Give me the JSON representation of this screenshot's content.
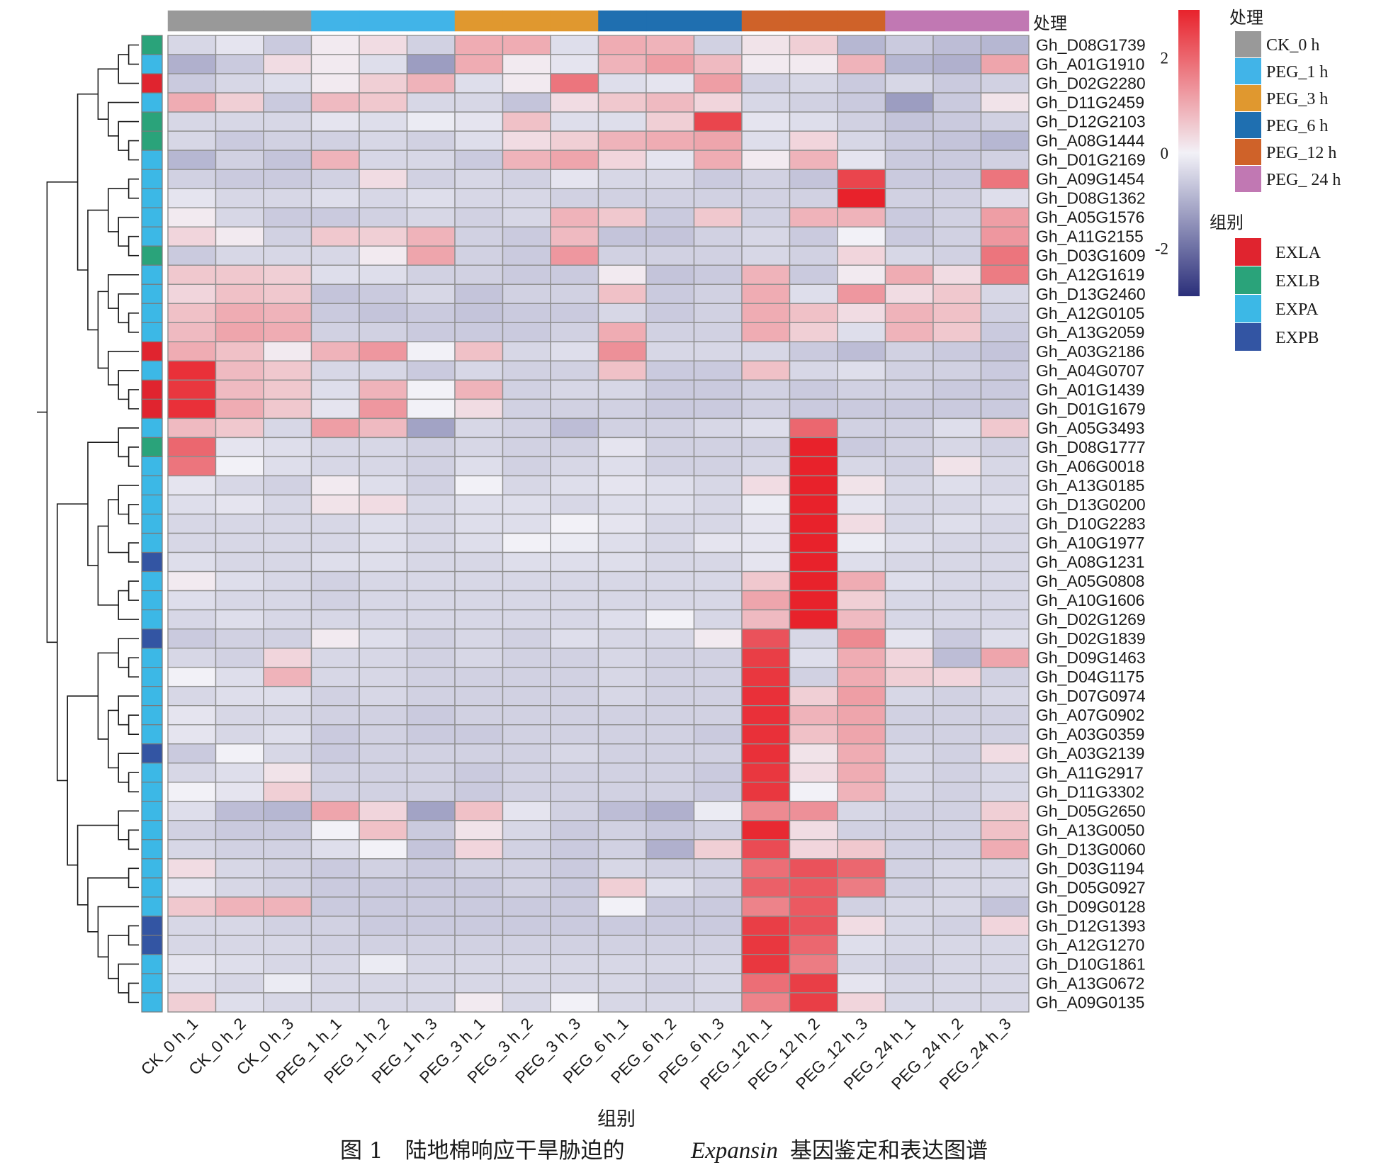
{
  "chart_data": {
    "type": "heatmap",
    "columns": [
      "CK_0 h_1",
      "CK_0 h_2",
      "CK_0 h_3",
      "PEG_1 h_1",
      "PEG_1 h_2",
      "PEG_1 h_3",
      "PEG_3 h_1",
      "PEG_3 h_2",
      "PEG_3 h_3",
      "PEG_6 h_1",
      "PEG_6 h_2",
      "PEG_6 h_3",
      "PEG_12 h_1",
      "PEG_12 h_2",
      "PEG_12 h_3",
      "PEG_24 h_1",
      "PEG_24 h_2",
      "PEG_24 h_3"
    ],
    "column_groups": [
      "CK_0 h",
      "CK_0 h",
      "CK_0 h",
      "PEG_1 h",
      "PEG_1 h",
      "PEG_1 h",
      "PEG_3 h",
      "PEG_3 h",
      "PEG_3 h",
      "PEG_6 h",
      "PEG_6 h",
      "PEG_6 h",
      "PEG_12 h",
      "PEG_12 h",
      "PEG_12 h",
      "PEG_24 h",
      "PEG_24 h",
      "PEG_24 h"
    ],
    "rows": [
      "Gh_D08G1739",
      "Gh_A01G1910",
      "Gh_D02G2280",
      "Gh_D11G2459",
      "Gh_D12G2103",
      "Gh_A08G1444",
      "Gh_D01G2169",
      "Gh_A09G1454",
      "Gh_D08G1362",
      "Gh_A05G1576",
      "Gh_A11G2155",
      "Gh_D03G1609",
      "Gh_A12G1619",
      "Gh_D13G2460",
      "Gh_A12G0105",
      "Gh_A13G2059",
      "Gh_A03G2186",
      "Gh_A04G0707",
      "Gh_A01G1439",
      "Gh_D01G1679",
      "Gh_A05G3493",
      "Gh_D08G1777",
      "Gh_A06G0018",
      "Gh_A13G0185",
      "Gh_D13G0200",
      "Gh_D10G2283",
      "Gh_A10G1977",
      "Gh_A08G1231",
      "Gh_A05G0808",
      "Gh_A10G1606",
      "Gh_D02G1269",
      "Gh_D02G1839",
      "Gh_D09G1463",
      "Gh_D04G1175",
      "Gh_D07G0974",
      "Gh_A07G0902",
      "Gh_A03G0359",
      "Gh_A03G2139",
      "Gh_A11G2917",
      "Gh_D11G3302",
      "Gh_D05G2650",
      "Gh_A13G0050",
      "Gh_D13G0060",
      "Gh_D03G1194",
      "Gh_D05G0927",
      "Gh_D09G0128",
      "Gh_D12G1393",
      "Gh_A12G1270",
      "Gh_D10G1861",
      "Gh_A13G0672",
      "Gh_A09G0135"
    ],
    "row_groups": [
      "EXLB",
      "EXPA",
      "EXLA",
      "EXPA",
      "EXLB",
      "EXLB",
      "EXPA",
      "EXPA",
      "EXPA",
      "EXPA",
      "EXPA",
      "EXLB",
      "EXPA",
      "EXPA",
      "EXPA",
      "EXPA",
      "EXLA",
      "EXPA",
      "EXLA",
      "EXLA",
      "EXPA",
      "EXLB",
      "EXPA",
      "EXPA",
      "EXPA",
      "EXPA",
      "EXPA",
      "EXPB",
      "EXPA",
      "EXPA",
      "EXPA",
      "EXPB",
      "EXPA",
      "EXPA",
      "EXPA",
      "EXPA",
      "EXPA",
      "EXPB",
      "EXPA",
      "EXPA",
      "EXPA",
      "EXPA",
      "EXPA",
      "EXPA",
      "EXPA",
      "EXPA",
      "EXPB",
      "EXPB",
      "EXPA",
      "EXPA",
      "EXPA"
    ],
    "values": [
      [
        -0.4,
        -0.2,
        -0.6,
        0.1,
        0.3,
        -0.5,
        1.0,
        1.0,
        -0.3,
        1.0,
        0.9,
        -0.5,
        0.2,
        0.5,
        -0.9,
        -0.6,
        -0.8,
        -0.9
      ],
      [
        -1.0,
        -0.6,
        0.3,
        0.1,
        -0.3,
        -1.3,
        1.0,
        0.1,
        -0.2,
        0.9,
        1.2,
        0.8,
        0.1,
        0.1,
        0.9,
        -0.9,
        -1.0,
        1.1
      ],
      [
        -0.6,
        -0.4,
        -0.3,
        0.1,
        0.5,
        0.9,
        -0.3,
        0.1,
        1.8,
        -0.3,
        -0.2,
        1.2,
        -0.5,
        -0.4,
        -0.6,
        -0.4,
        -0.6,
        -0.5
      ],
      [
        1.0,
        0.5,
        -0.6,
        0.8,
        0.6,
        -0.4,
        -0.4,
        -0.7,
        0.3,
        0.6,
        0.8,
        0.4,
        -0.4,
        -0.5,
        -0.6,
        -1.3,
        -0.6,
        0.2
      ],
      [
        -0.4,
        -0.4,
        -0.4,
        -0.2,
        -0.3,
        -0.1,
        -0.2,
        0.7,
        -0.3,
        -0.3,
        0.5,
        2.5,
        -0.2,
        -0.3,
        -0.5,
        -0.7,
        -0.6,
        -0.5
      ],
      [
        -0.4,
        -0.6,
        -0.5,
        -0.5,
        -0.4,
        -0.5,
        -0.3,
        0.3,
        0.5,
        0.9,
        1.0,
        1.1,
        -0.3,
        0.4,
        -0.4,
        -0.6,
        -0.7,
        -0.9
      ],
      [
        -0.9,
        -0.5,
        -0.7,
        0.9,
        -0.4,
        -0.4,
        -0.6,
        0.9,
        1.1,
        0.4,
        -0.2,
        1.0,
        0.1,
        0.9,
        -0.2,
        -0.6,
        -0.6,
        -0.5
      ],
      [
        -0.5,
        -0.6,
        -0.6,
        -0.5,
        0.3,
        -0.5,
        -0.4,
        -0.5,
        -0.2,
        -0.4,
        -0.4,
        -0.6,
        -0.5,
        -0.7,
        2.5,
        -0.6,
        -0.6,
        1.8
      ],
      [
        -0.2,
        -0.4,
        -0.4,
        -0.3,
        -0.4,
        -0.3,
        -0.4,
        -0.4,
        -0.5,
        -0.5,
        -0.5,
        -0.5,
        -0.5,
        -0.5,
        3.0,
        -0.5,
        -0.5,
        -0.3
      ],
      [
        0.1,
        -0.4,
        -0.6,
        -0.6,
        -0.5,
        -0.4,
        -0.5,
        -0.4,
        0.9,
        0.6,
        -0.6,
        0.6,
        -0.5,
        0.9,
        0.9,
        -0.6,
        -0.5,
        1.2
      ],
      [
        0.4,
        0.1,
        -0.5,
        0.6,
        0.5,
        0.9,
        -0.5,
        -0.6,
        0.8,
        -0.7,
        -0.7,
        -0.5,
        -0.4,
        -0.6,
        0.0,
        -0.6,
        -0.5,
        1.3
      ],
      [
        -0.6,
        -0.4,
        -0.4,
        -0.4,
        0.1,
        1.1,
        -0.5,
        -0.6,
        1.3,
        -0.5,
        -0.5,
        -0.5,
        -0.4,
        -0.5,
        0.4,
        -0.4,
        -0.5,
        1.8
      ],
      [
        0.6,
        0.6,
        0.5,
        -0.3,
        -0.3,
        -0.5,
        -0.5,
        -0.6,
        -0.6,
        0.1,
        -0.7,
        -0.6,
        0.9,
        -0.6,
        0.1,
        1.0,
        0.3,
        1.7
      ],
      [
        0.4,
        0.7,
        0.6,
        -0.7,
        -0.6,
        -0.4,
        -0.7,
        -0.5,
        -0.5,
        0.7,
        -0.6,
        -0.5,
        1.0,
        -0.3,
        1.3,
        0.3,
        0.6,
        -0.4
      ],
      [
        0.7,
        1.0,
        0.9,
        -0.6,
        -0.7,
        -0.6,
        -0.7,
        -0.6,
        -0.6,
        -0.4,
        -0.6,
        -0.5,
        1.0,
        0.7,
        0.3,
        0.9,
        0.7,
        -0.5
      ],
      [
        0.8,
        1.1,
        1.0,
        -0.5,
        -0.5,
        -0.6,
        -0.6,
        -0.6,
        -0.5,
        1.0,
        -0.5,
        -0.5,
        1.0,
        0.5,
        -0.3,
        0.9,
        0.6,
        -0.6
      ],
      [
        1.0,
        0.7,
        0.1,
        0.9,
        1.3,
        0.0,
        0.7,
        -0.4,
        -0.3,
        1.4,
        -0.4,
        -0.4,
        -0.4,
        -0.6,
        -0.8,
        -0.5,
        -0.6,
        -0.7
      ],
      [
        2.8,
        0.8,
        0.6,
        -0.4,
        -0.4,
        -0.6,
        -0.4,
        -0.5,
        -0.5,
        0.7,
        -0.6,
        -0.6,
        0.7,
        -0.4,
        -0.3,
        -0.5,
        -0.5,
        -0.6
      ],
      [
        2.7,
        0.8,
        0.6,
        -0.3,
        0.9,
        0.0,
        0.9,
        -0.5,
        -0.4,
        -0.4,
        -0.6,
        -0.6,
        -0.5,
        -0.6,
        -0.5,
        -0.5,
        -0.6,
        -0.6
      ],
      [
        2.8,
        1.0,
        0.6,
        -0.2,
        1.3,
        0.0,
        0.3,
        -0.5,
        -0.5,
        -0.5,
        -0.6,
        -0.6,
        -0.5,
        -0.6,
        -0.6,
        -0.6,
        -0.6,
        -0.6
      ],
      [
        0.8,
        0.6,
        -0.4,
        1.2,
        0.8,
        -1.2,
        -0.4,
        -0.5,
        -0.8,
        -0.5,
        -0.5,
        -0.4,
        -0.3,
        2.0,
        -0.5,
        -0.5,
        -0.3,
        0.6
      ],
      [
        2.0,
        -0.2,
        -0.3,
        -0.4,
        -0.4,
        -0.5,
        -0.4,
        -0.5,
        -0.5,
        -0.2,
        -0.5,
        -0.5,
        -0.5,
        3.0,
        -0.6,
        -0.5,
        -0.4,
        -0.5
      ],
      [
        1.8,
        0.0,
        -0.3,
        -0.4,
        -0.4,
        -0.5,
        -0.3,
        -0.5,
        -0.4,
        -0.3,
        -0.5,
        -0.5,
        -0.4,
        3.0,
        -0.4,
        -0.5,
        0.2,
        -0.4
      ],
      [
        -0.2,
        -0.4,
        -0.5,
        0.1,
        -0.3,
        -0.5,
        0.0,
        -0.4,
        -0.3,
        -0.2,
        -0.3,
        -0.4,
        0.3,
        3.0,
        0.2,
        -0.4,
        -0.3,
        -0.4
      ],
      [
        -0.3,
        -0.2,
        -0.4,
        0.2,
        0.3,
        -0.4,
        -0.3,
        -0.3,
        -0.4,
        -0.3,
        -0.3,
        -0.4,
        -0.1,
        3.0,
        -0.2,
        -0.4,
        -0.4,
        -0.3
      ],
      [
        -0.4,
        -0.4,
        -0.4,
        -0.4,
        -0.3,
        -0.4,
        -0.3,
        -0.3,
        0.0,
        -0.2,
        -0.4,
        -0.4,
        -0.2,
        3.0,
        0.3,
        -0.4,
        -0.3,
        -0.4
      ],
      [
        -0.4,
        -0.4,
        -0.4,
        -0.4,
        -0.3,
        -0.4,
        -0.3,
        0.0,
        -0.1,
        -0.3,
        -0.4,
        -0.2,
        -0.2,
        3.0,
        -0.1,
        -0.3,
        -0.4,
        -0.4
      ],
      [
        -0.3,
        -0.4,
        -0.4,
        -0.3,
        -0.3,
        -0.4,
        -0.4,
        -0.3,
        -0.3,
        -0.3,
        -0.4,
        -0.4,
        -0.2,
        3.0,
        -0.3,
        -0.4,
        -0.4,
        -0.4
      ],
      [
        0.1,
        -0.3,
        -0.4,
        -0.5,
        -0.4,
        -0.4,
        -0.4,
        -0.4,
        -0.4,
        -0.4,
        -0.4,
        -0.4,
        0.6,
        3.0,
        1.0,
        -0.3,
        -0.4,
        -0.4
      ],
      [
        -0.3,
        -0.4,
        -0.4,
        -0.5,
        -0.4,
        -0.4,
        -0.4,
        -0.4,
        -0.4,
        -0.4,
        -0.4,
        -0.4,
        1.1,
        3.0,
        0.5,
        -0.4,
        -0.4,
        -0.4
      ],
      [
        -0.4,
        -0.3,
        -0.4,
        -0.4,
        -0.4,
        -0.4,
        -0.4,
        -0.4,
        -0.4,
        -0.3,
        0.0,
        -0.4,
        0.8,
        3.0,
        0.8,
        -0.4,
        -0.4,
        -0.4
      ],
      [
        -0.6,
        -0.5,
        -0.5,
        0.1,
        -0.3,
        -0.5,
        -0.4,
        -0.5,
        -0.3,
        -0.4,
        -0.4,
        0.1,
        2.3,
        -0.4,
        1.5,
        -0.2,
        -0.6,
        -0.3
      ],
      [
        -0.4,
        -0.5,
        0.4,
        -0.4,
        -0.4,
        -0.5,
        -0.4,
        -0.5,
        -0.5,
        -0.4,
        -0.5,
        -0.5,
        2.6,
        -0.3,
        1.0,
        0.4,
        -0.8,
        1.1
      ],
      [
        0.0,
        -0.3,
        0.9,
        -0.4,
        -0.4,
        -0.5,
        -0.5,
        -0.5,
        -0.5,
        -0.4,
        -0.5,
        -0.5,
        2.7,
        -0.5,
        1.0,
        0.5,
        0.4,
        -0.5
      ],
      [
        -0.4,
        -0.3,
        -0.3,
        -0.5,
        -0.4,
        -0.5,
        -0.5,
        -0.5,
        -0.5,
        -0.4,
        -0.5,
        -0.5,
        2.8,
        0.5,
        1.2,
        -0.4,
        -0.5,
        -0.4
      ],
      [
        -0.2,
        -0.4,
        -0.4,
        -0.5,
        -0.5,
        -0.6,
        -0.5,
        -0.5,
        -0.5,
        -0.5,
        -0.5,
        -0.5,
        2.8,
        0.9,
        1.1,
        -0.5,
        -0.5,
        -0.5
      ],
      [
        -0.2,
        -0.4,
        -0.3,
        -0.6,
        -0.5,
        -0.6,
        -0.6,
        -0.5,
        -0.5,
        -0.5,
        -0.5,
        -0.6,
        2.8,
        0.7,
        1.1,
        -0.5,
        -0.5,
        -0.5
      ],
      [
        -0.6,
        0.0,
        -0.4,
        -0.6,
        -0.5,
        -0.5,
        -0.5,
        -0.5,
        -0.4,
        -0.5,
        -0.5,
        -0.5,
        2.8,
        0.2,
        1.0,
        -0.4,
        -0.5,
        0.3
      ],
      [
        -0.4,
        -0.3,
        0.2,
        -0.5,
        -0.5,
        -0.5,
        -0.6,
        -0.5,
        -0.5,
        -0.5,
        -0.5,
        -0.6,
        2.7,
        0.3,
        1.0,
        -0.4,
        -0.5,
        -0.4
      ],
      [
        0.0,
        -0.2,
        0.5,
        -0.5,
        -0.5,
        -0.5,
        -0.6,
        -0.5,
        -0.5,
        -0.5,
        -0.5,
        -0.6,
        2.7,
        0.0,
        0.9,
        -0.4,
        -0.5,
        -0.4
      ],
      [
        -0.3,
        -0.8,
        -0.9,
        1.1,
        0.4,
        -1.2,
        0.7,
        -0.2,
        -0.5,
        -0.8,
        -1.0,
        -0.1,
        1.5,
        1.4,
        -0.4,
        -0.5,
        -0.5,
        0.5
      ],
      [
        -0.5,
        -0.6,
        -0.6,
        0.0,
        0.7,
        -0.6,
        0.2,
        -0.4,
        -0.6,
        -0.5,
        -0.6,
        -0.5,
        2.9,
        0.3,
        -0.5,
        -0.5,
        -0.5,
        0.7
      ],
      [
        -0.4,
        -0.5,
        -0.5,
        -0.3,
        0.0,
        -0.7,
        0.4,
        -0.5,
        -0.6,
        -0.5,
        -1.0,
        0.5,
        2.4,
        0.4,
        0.6,
        -0.5,
        -0.5,
        1.0
      ],
      [
        0.3,
        -0.4,
        -0.5,
        -0.6,
        -0.5,
        -0.6,
        -0.5,
        -0.5,
        -0.6,
        -0.4,
        -0.5,
        -0.5,
        1.9,
        2.3,
        2.0,
        -0.5,
        -0.4,
        -0.4
      ],
      [
        -0.2,
        -0.4,
        -0.5,
        -0.6,
        -0.6,
        -0.6,
        -0.6,
        -0.5,
        -0.6,
        0.5,
        -0.3,
        -0.5,
        2.1,
        2.2,
        1.7,
        -0.5,
        -0.4,
        -0.4
      ],
      [
        0.6,
        0.9,
        0.9,
        -0.6,
        -0.6,
        -0.6,
        -0.6,
        -0.6,
        -0.6,
        0.0,
        -0.6,
        -0.6,
        1.6,
        2.2,
        -0.5,
        -0.4,
        -0.4,
        -0.7
      ],
      [
        -0.4,
        -0.4,
        -0.5,
        -0.5,
        -0.6,
        -0.6,
        -0.6,
        -0.6,
        -0.6,
        -0.6,
        -0.6,
        -0.6,
        2.6,
        2.3,
        0.3,
        -0.4,
        -0.5,
        0.4
      ],
      [
        -0.4,
        -0.4,
        -0.4,
        -0.5,
        -0.5,
        -0.5,
        -0.5,
        -0.5,
        -0.5,
        -0.5,
        -0.5,
        -0.5,
        2.7,
        2.0,
        -0.3,
        -0.4,
        -0.4,
        -0.4
      ],
      [
        -0.2,
        -0.3,
        -0.4,
        -0.4,
        -0.1,
        -0.4,
        -0.4,
        -0.4,
        -0.4,
        -0.4,
        -0.4,
        -0.4,
        2.7,
        1.7,
        -0.4,
        -0.5,
        -0.4,
        -0.4
      ],
      [
        -0.3,
        -0.4,
        -0.1,
        -0.4,
        -0.4,
        -0.4,
        -0.4,
        -0.4,
        -0.4,
        -0.4,
        -0.5,
        -0.4,
        1.9,
        2.6,
        -0.2,
        -0.4,
        -0.4,
        -0.4
      ],
      [
        0.5,
        -0.3,
        -0.4,
        -0.4,
        -0.4,
        -0.4,
        0.1,
        -0.4,
        0.0,
        -0.4,
        -0.4,
        -0.4,
        1.6,
        2.6,
        0.4,
        -0.4,
        -0.4,
        -0.4
      ]
    ],
    "scale": {
      "min": -3,
      "max": 3,
      "ticks": [
        2,
        0,
        -2
      ],
      "tick_labels": [
        "2",
        "0",
        "-2"
      ]
    },
    "colors": {
      "low": "#2b2f7a",
      "mid": "#f2f1f7",
      "high": "#e8222b"
    },
    "legend_treatment": {
      "title": "处理",
      "items": [
        {
          "label": "CK_0 h",
          "color": "#999999"
        },
        {
          "label": "PEG_1 h",
          "color": "#41b4e8"
        },
        {
          "label": "PEG_3 h",
          "color": "#e0982f"
        },
        {
          "label": "PEG_6 h",
          "color": "#1f6fb0"
        },
        {
          "label": "PEG_12 h",
          "color": "#cf6229"
        },
        {
          "label": "PEG_ 24 h",
          "color": "#c178b3"
        }
      ]
    },
    "legend_group": {
      "title": "组别",
      "items": [
        {
          "label": "EXLA",
          "color": "#e0242f"
        },
        {
          "label": "EXLB",
          "color": "#2aa37a"
        },
        {
          "label": "EXPA",
          "color": "#3cb8e6"
        },
        {
          "label": "EXPB",
          "color": "#3355a3"
        }
      ]
    },
    "treatment_colors": {
      "CK_0 h": "#999999",
      "PEG_1 h": "#41b4e8",
      "PEG_3 h": "#e0982f",
      "PEG_6 h": "#1f6fb0",
      "PEG_12 h": "#cf6229",
      "PEG_24 h": "#c178b3"
    },
    "group_colors": {
      "EXLA": "#e0242f",
      "EXLB": "#2aa37a",
      "EXPA": "#3cb8e6",
      "EXPB": "#3355a3"
    },
    "top_annotation_label": "处理",
    "xlabel": "组别",
    "caption_prefix": "图 1　陆地棉响应干旱胁迫的",
    "caption_italic": "Expansin",
    "caption_suffix": "基因鉴定和表达图谱"
  }
}
